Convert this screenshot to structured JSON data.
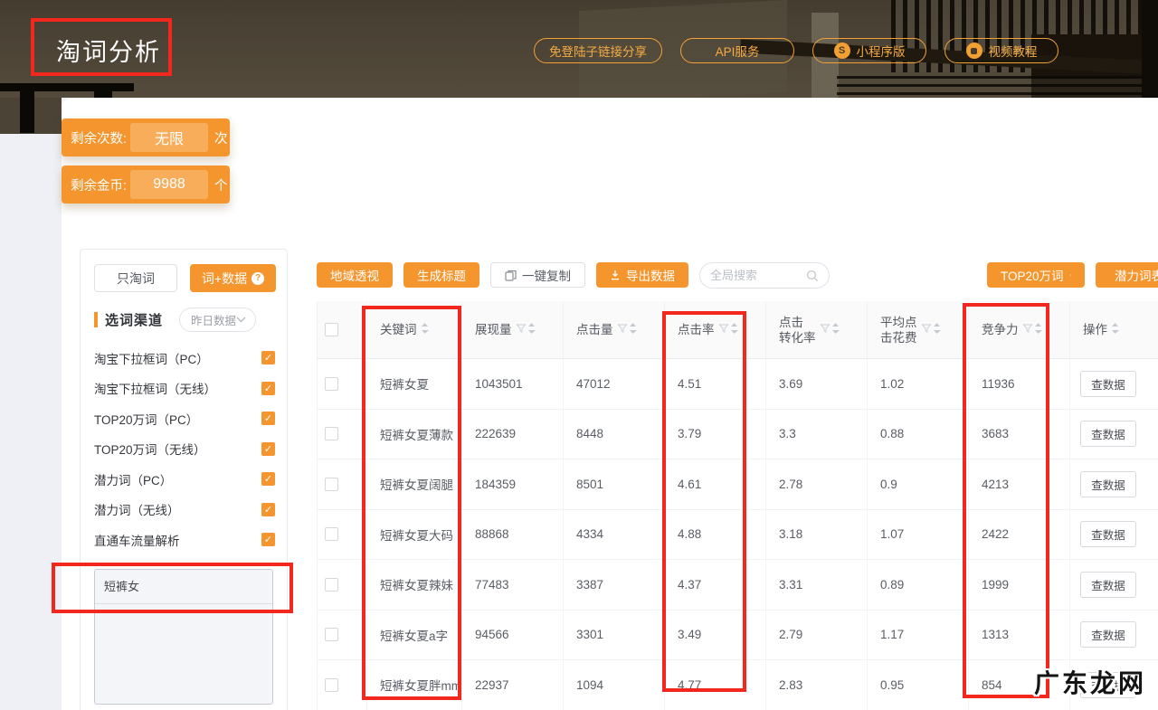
{
  "header": {
    "title": "淘词分析",
    "pills": [
      {
        "label": "免登陆子链接分享",
        "icon": "none"
      },
      {
        "label": "API服务",
        "icon": "none"
      },
      {
        "label": "小程序版",
        "icon": "miniprogram"
      },
      {
        "label": "视频教程",
        "icon": "video"
      }
    ]
  },
  "badges": [
    {
      "label": "剩余次数:",
      "value": "无限",
      "unit": "次"
    },
    {
      "label": "剩余金币:",
      "value": "9988",
      "unit": "个"
    }
  ],
  "sidebar": {
    "word_only_button": "只淘词",
    "word_data_button": "词+数据",
    "section_label": "选词渠道",
    "date_dropdown_value": "昨日数据",
    "channels": [
      {
        "label": "淘宝下拉框词（PC）",
        "checked": true
      },
      {
        "label": "淘宝下拉框词（无线）",
        "checked": true
      },
      {
        "label": "TOP20万词（PC）",
        "checked": true
      },
      {
        "label": "TOP20万词（无线）",
        "checked": true
      },
      {
        "label": "潜力词（PC）",
        "checked": true
      },
      {
        "label": "潜力词（无线）",
        "checked": true
      },
      {
        "label": "直通车流量解析",
        "checked": true
      }
    ],
    "keyword_input_value": "短裤女"
  },
  "toolbar": {
    "region_button": "地域透视",
    "gen_title_button": "生成标题",
    "copy_button": "一键复制",
    "export_button": "导出数据",
    "search_placeholder": "全局搜索",
    "top20_button": "TOP20万词",
    "potential_button": "潜力词表"
  },
  "table": {
    "columns": [
      {
        "key": "keyword",
        "label": "关键词",
        "filter": false,
        "sort": true
      },
      {
        "key": "impressions",
        "label": "展现量",
        "filter": true,
        "sort": true
      },
      {
        "key": "clicks",
        "label": "点击量",
        "filter": true,
        "sort": true
      },
      {
        "key": "ctr",
        "label": "点击率",
        "filter": true,
        "sort": true
      },
      {
        "key": "cvr",
        "label": "点击\n转化率",
        "filter": true,
        "sort": true
      },
      {
        "key": "cpc",
        "label": "平均点\n击花费",
        "filter": true,
        "sort": true
      },
      {
        "key": "competition",
        "label": "竞争力",
        "filter": true,
        "sort": true
      },
      {
        "key": "action",
        "label": "操作",
        "filter": false,
        "sort": true
      }
    ],
    "action_label": "查数据",
    "rows": [
      {
        "keyword": "短裤女夏",
        "impressions": "1043501",
        "clicks": "47012",
        "ctr": "4.51",
        "cvr": "3.69",
        "cpc": "1.02",
        "competition": "11936"
      },
      {
        "keyword": "短裤女夏薄款",
        "impressions": "222639",
        "clicks": "8448",
        "ctr": "3.79",
        "cvr": "3.3",
        "cpc": "0.88",
        "competition": "3683"
      },
      {
        "keyword": "短裤女夏阔腿",
        "impressions": "184359",
        "clicks": "8501",
        "ctr": "4.61",
        "cvr": "2.78",
        "cpc": "0.9",
        "competition": "4213"
      },
      {
        "keyword": "短裤女夏大码",
        "impressions": "88868",
        "clicks": "4334",
        "ctr": "4.88",
        "cvr": "3.18",
        "cpc": "1.07",
        "competition": "2422"
      },
      {
        "keyword": "短裤女夏辣妹",
        "impressions": "77483",
        "clicks": "3387",
        "ctr": "4.37",
        "cvr": "3.31",
        "cpc": "0.89",
        "competition": "1999"
      },
      {
        "keyword": "短裤女夏a字",
        "impressions": "94566",
        "clicks": "3301",
        "ctr": "3.49",
        "cvr": "2.79",
        "cpc": "1.17",
        "competition": "1313"
      },
      {
        "keyword": "短裤女夏胖mm",
        "impressions": "22937",
        "clicks": "1094",
        "ctr": "4.77",
        "cvr": "2.83",
        "cpc": "0.95",
        "competition": "854"
      }
    ]
  },
  "watermark": "广东龙网",
  "colors": {
    "accent": "#f5952d",
    "annotation": "#f2281e"
  }
}
